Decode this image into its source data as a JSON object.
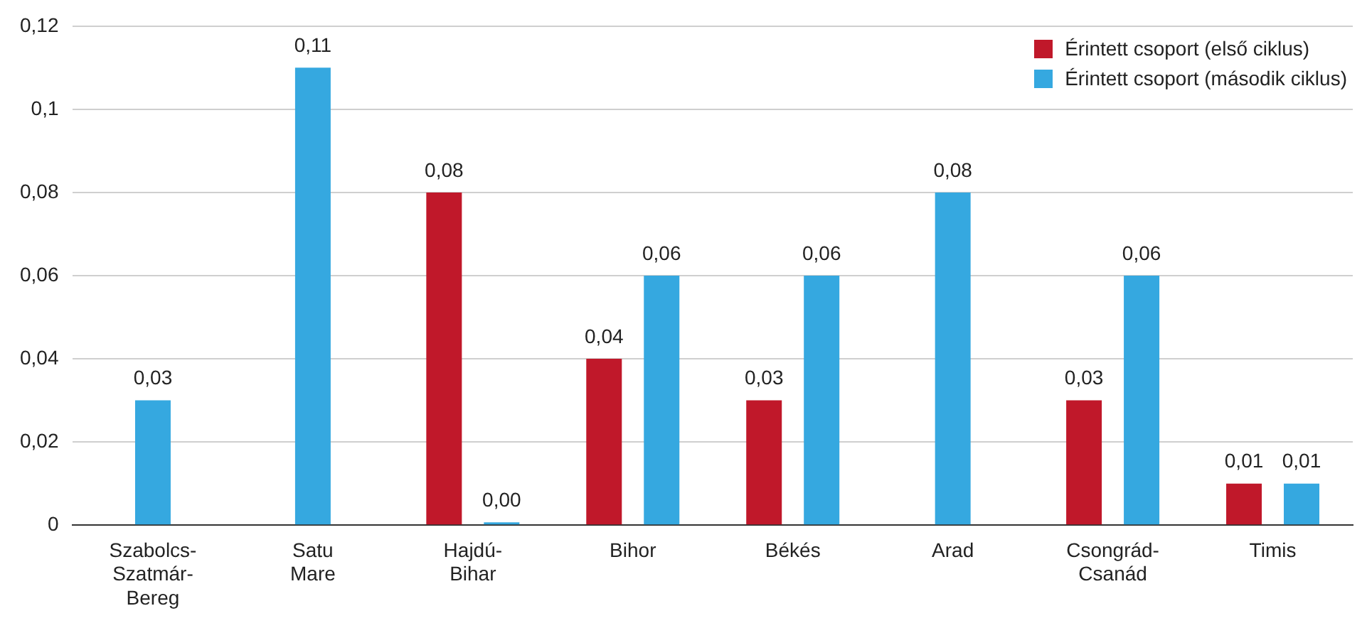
{
  "chart_data": {
    "type": "bar",
    "categories": [
      "Szabolcs-Szatmár-Bereg",
      "Satu Mare",
      "Hajdú-Bihar",
      "Bihor",
      "Békés",
      "Arad",
      "Csongrád-Csanád",
      "Timis"
    ],
    "series": [
      {
        "name": "Érintett csoport (első ciklus)",
        "color": "#c0182a",
        "values": [
          null,
          null,
          0.08,
          0.04,
          0.03,
          null,
          0.03,
          0.01
        ],
        "value_labels": [
          null,
          null,
          "0,08",
          "0,04",
          "0,03",
          null,
          "0,03",
          "0,01"
        ]
      },
      {
        "name": "Érintett csoport (második ciklus)",
        "color": "#35a8e0",
        "values": [
          0.03,
          0.11,
          0,
          0.06,
          0.06,
          0.08,
          0.06,
          0.01
        ],
        "value_labels": [
          "0,03",
          "0,11",
          "0,00",
          "0,06",
          "0,06",
          "0,08",
          "0,06",
          "0,01"
        ]
      }
    ],
    "ylim": [
      0,
      0.12
    ],
    "yticks": [
      {
        "value": 0,
        "label": "0"
      },
      {
        "value": 0.02,
        "label": "0,02"
      },
      {
        "value": 0.04,
        "label": "0,04"
      },
      {
        "value": 0.06,
        "label": "0,06"
      },
      {
        "value": 0.08,
        "label": "0,08"
      },
      {
        "value": 0.1,
        "label": "0,1"
      },
      {
        "value": 0.12,
        "label": "0,12"
      }
    ],
    "grid": "y",
    "legend": "top right"
  }
}
